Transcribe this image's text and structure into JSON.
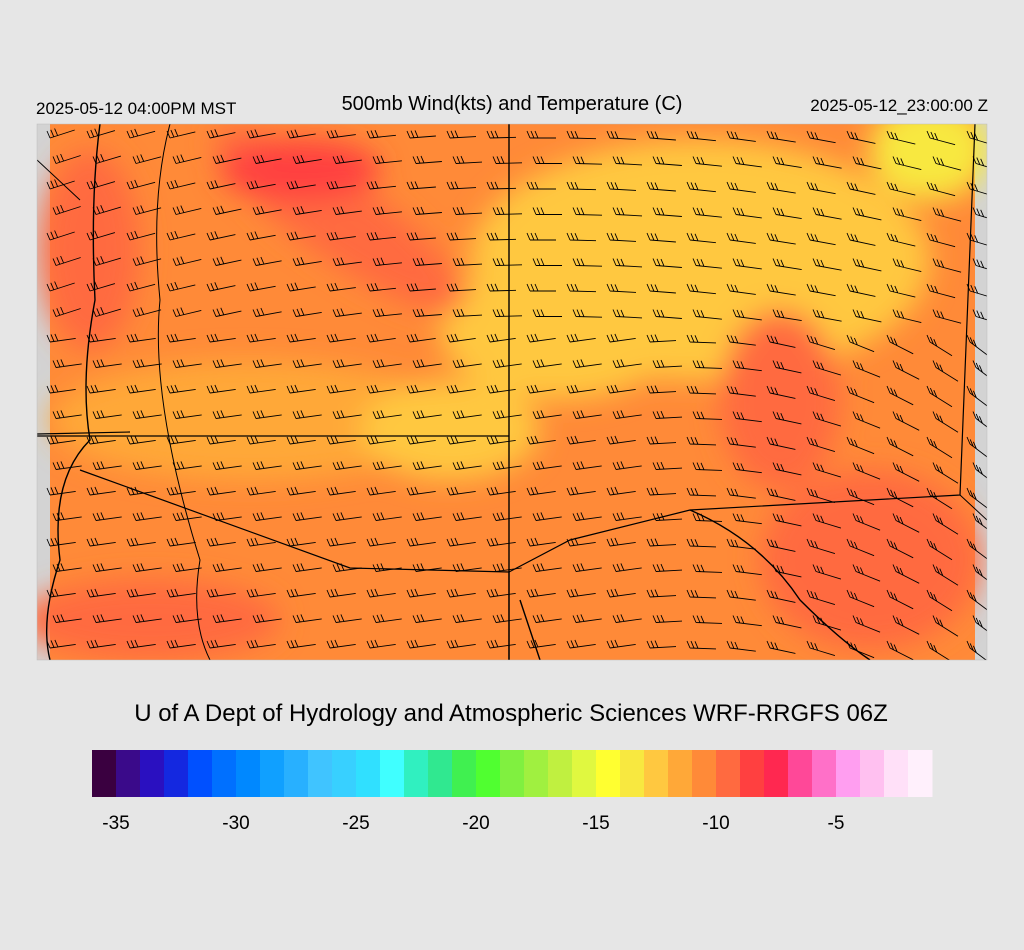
{
  "header": {
    "left_label": "2025-05-12 04:00PM MST",
    "title": "500mb Wind(kts) and Temperature (C)",
    "right_label": "2025-05-12_23:00:00 Z"
  },
  "credit": "U of A Dept of Hydrology and Atmospheric Sciences WRF-RRGFS 06Z",
  "colorbar": {
    "range": [
      -36,
      -1
    ],
    "colors": [
      "#3a0040",
      "#3a0a8a",
      "#2a10c0",
      "#1428e0",
      "#0050ff",
      "#0070ff",
      "#0088ff",
      "#10a0ff",
      "#28b0ff",
      "#40c4ff",
      "#38d0ff",
      "#30e0ff",
      "#40ffff",
      "#30f0c0",
      "#30e890",
      "#40f050",
      "#50ff30",
      "#80f040",
      "#a0f040",
      "#c0f040",
      "#e0f840",
      "#ffff30",
      "#f8e840",
      "#ffc840",
      "#ffa838",
      "#ff8a38",
      "#ff6a40",
      "#ff4040",
      "#ff2850",
      "#ff4898",
      "#ff70c8",
      "#ff9ef0",
      "#ffc0f0",
      "#ffe0f8",
      "#fff0fc"
    ],
    "ticks": [
      -35,
      -30,
      -25,
      -20,
      -15,
      -10,
      -5
    ]
  }
}
